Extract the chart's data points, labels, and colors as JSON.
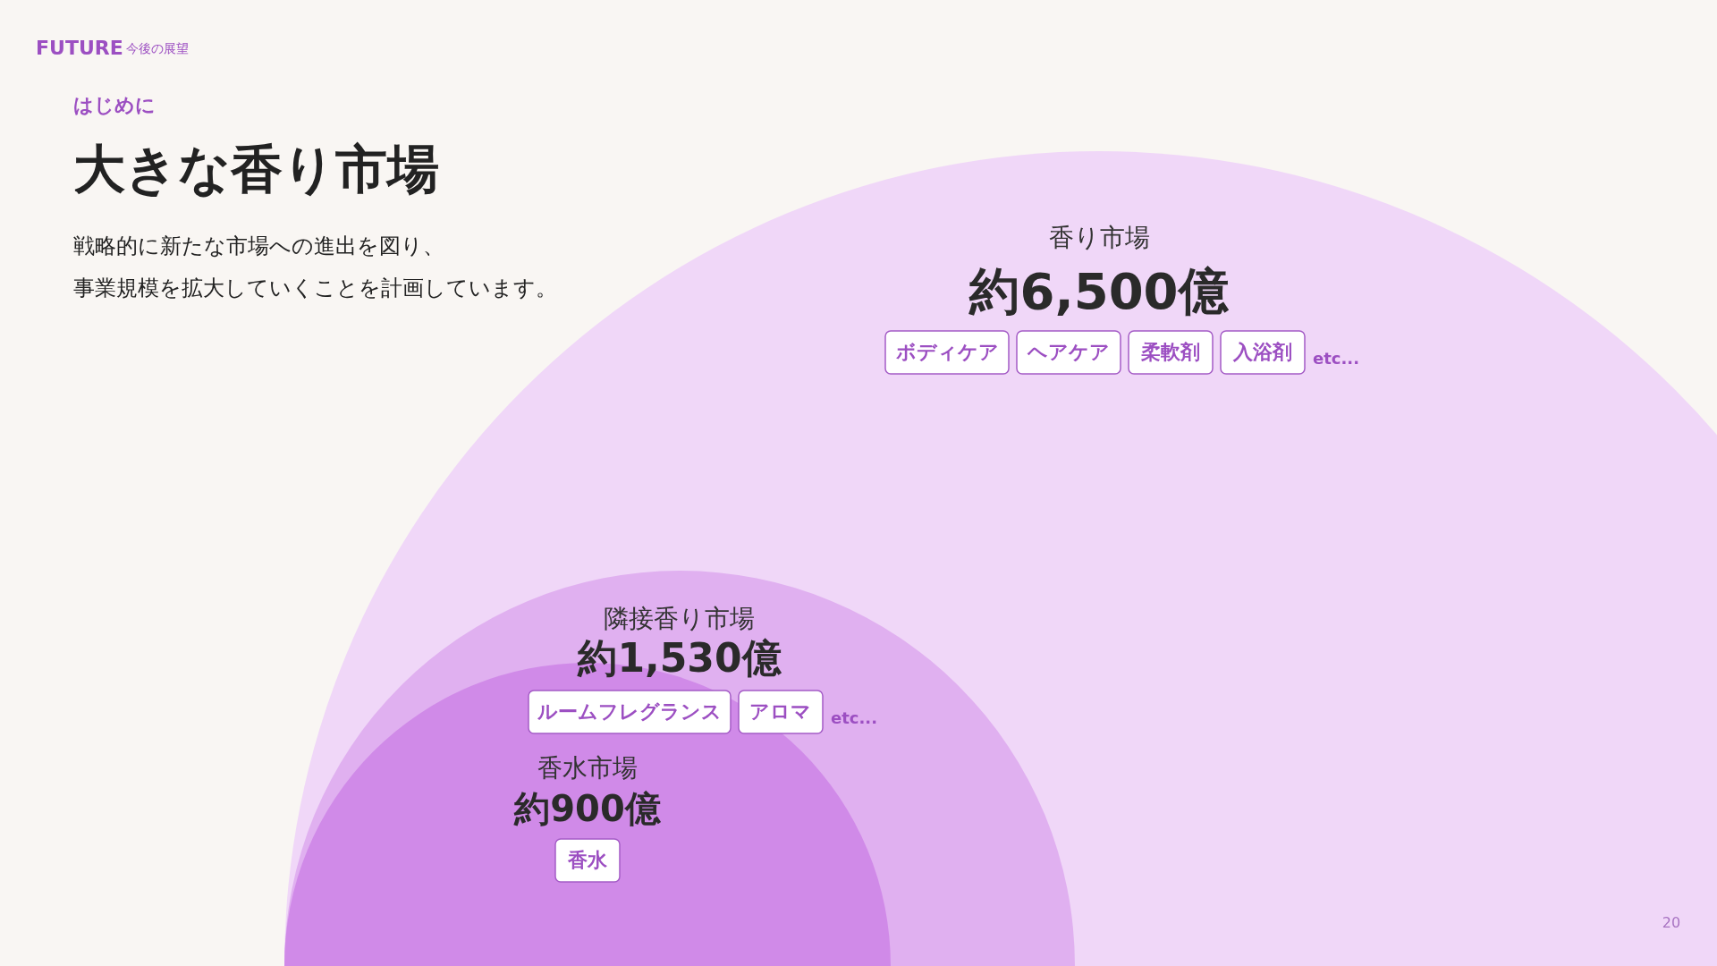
{
  "chart_data": {
    "type": "other",
    "title": "大きな香り市場",
    "categories": [
      "香り市場",
      "隣接香り市場",
      "香水市場"
    ],
    "values": [
      6500,
      1530,
      900
    ],
    "value_labels": [
      "約6,500億",
      "約1,530億",
      "約900億"
    ],
    "colors": [
      "#f0d7f8",
      "#e0b0f0",
      "#d08ae8"
    ],
    "annotations": [
      "FUTURE",
      "今後の展望",
      "はじめに",
      "戦略的に新たな市場への進出を図り、",
      "事業規模を拡大していくことを計画しています。",
      "20",
      {
        "text": "ボディケア",
        "x": "香り市場"
      },
      {
        "text": "ヘアケア",
        "x": "香り市場"
      },
      {
        "text": "柔軟剤",
        "x": "香り市場"
      },
      {
        "text": "入浴剤",
        "x": "香り市場"
      },
      {
        "text": "etc...",
        "x": "香り市場"
      },
      {
        "text": "ルームフレグランス",
        "x": "隣接香り市場"
      },
      {
        "text": "アロマ",
        "x": "隣接香り市場"
      },
      {
        "text": "etc...",
        "x": "隣接香り市場"
      },
      {
        "text": "香水",
        "x": "香水市場"
      }
    ]
  }
}
